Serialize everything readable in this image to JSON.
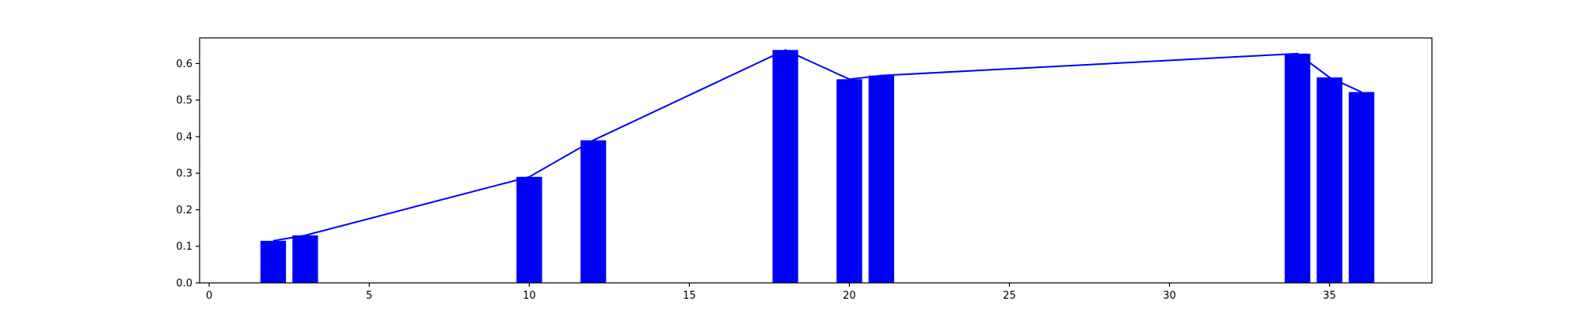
{
  "chart_data": {
    "type": "bar",
    "title": "",
    "xlabel": "",
    "ylabel": "",
    "xlim": [
      -0.3,
      38.2
    ],
    "ylim": [
      0,
      0.67
    ],
    "grid": false,
    "x_ticks": [
      0,
      5,
      10,
      15,
      20,
      25,
      30,
      35
    ],
    "y_ticks": [
      0.0,
      0.1,
      0.2,
      0.3,
      0.4,
      0.5,
      0.6
    ],
    "x_tick_labels": [
      "0",
      "5",
      "10",
      "15",
      "20",
      "25",
      "30",
      "35"
    ],
    "y_tick_labels": [
      "0.0",
      "0.1",
      "0.2",
      "0.3",
      "0.4",
      "0.5",
      "0.6"
    ],
    "bar_width": 0.8,
    "x": [
      2,
      3,
      10,
      12,
      18,
      20,
      21,
      34,
      35,
      36
    ],
    "values": [
      0.115,
      0.13,
      0.29,
      0.39,
      0.637,
      0.557,
      0.567,
      0.627,
      0.562,
      0.522
    ],
    "line": {
      "x": [
        2,
        3,
        10,
        12,
        18,
        20,
        21,
        34,
        35,
        36
      ],
      "y": [
        0.115,
        0.13,
        0.29,
        0.39,
        0.637,
        0.557,
        0.567,
        0.627,
        0.562,
        0.522
      ]
    },
    "colors": {
      "bars": "#0000ff",
      "line": "#0000ff",
      "axes": "#000000"
    }
  }
}
